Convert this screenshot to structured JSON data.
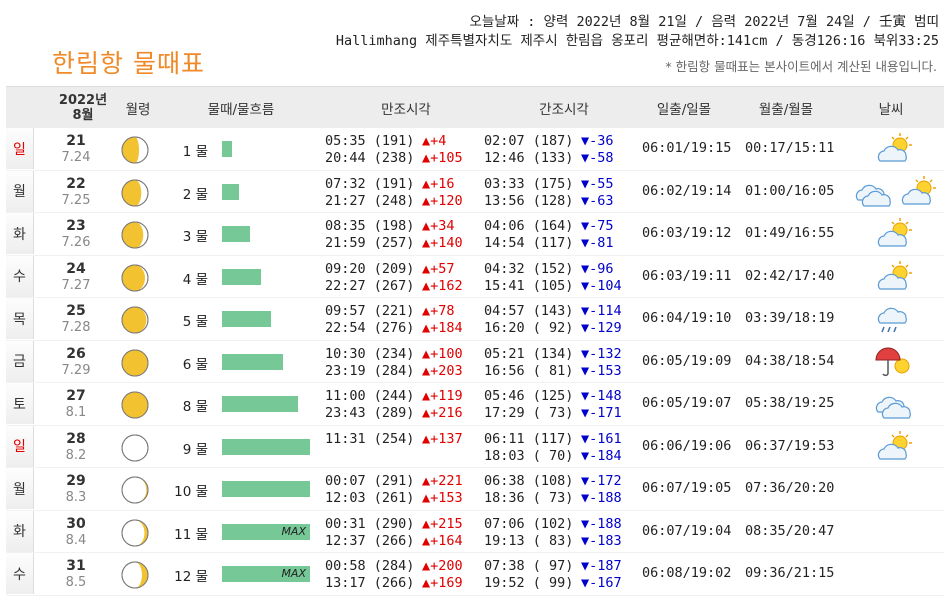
{
  "header": {
    "today_line": "오늘날짜 : 양력 2022년 8월 21일 / 음력 2022년 7월 24일 / 壬寅 범띠",
    "location_line": "Hallimhang 제주특별자치도 제주시 한림읍 옹포리 평균해면하:141cm / 동경126:16 북위33:25",
    "title": "한림항 물때표",
    "note": "* 한림항 물때표는 본사이트에서 계산된 내용입니다."
  },
  "table": {
    "year_label": "2022년",
    "month_label": "8월",
    "columns": [
      "월령",
      "물때/물흐름",
      "만조시각",
      "간조시각",
      "일출/일몰",
      "월출/월몰",
      "날씨"
    ],
    "max_label": "MAX",
    "rows": [
      {
        "weekday": "일",
        "weekend": true,
        "day": "21",
        "lunar": "7.24",
        "moon_phase": 0.8,
        "mul": "1 물",
        "flow": 0.08,
        "hi1": "05:35 (191)",
        "hi1d": "▲+4",
        "hi2": "20:44 (238)",
        "hi2d": "▲+105",
        "lo1": "02:07 (187)",
        "lo1d": "▼-36",
        "lo2": "12:46 (133)",
        "lo2d": "▼-58",
        "sun": "06:01/19:15",
        "moon": "00:17/15:11",
        "weather": [
          "partly-cloudy-icon"
        ]
      },
      {
        "weekday": "월",
        "weekend": false,
        "day": "22",
        "lunar": "7.25",
        "moon_phase": 0.83,
        "mul": "2 물",
        "flow": 0.14,
        "hi1": "07:32 (191)",
        "hi1d": "▲+16",
        "hi2": "21:27 (248)",
        "hi2d": "▲+120",
        "lo1": "03:33 (175)",
        "lo1d": "▼-55",
        "lo2": "13:56 (128)",
        "lo2d": "▼-63",
        "sun": "06:02/19:14",
        "moon": "01:00/16:05",
        "weather": [
          "cloudy-icon",
          "partly-cloudy-icon"
        ]
      },
      {
        "weekday": "화",
        "weekend": false,
        "day": "23",
        "lunar": "7.26",
        "moon_phase": 0.86,
        "mul": "3 물",
        "flow": 0.23,
        "hi1": "08:35 (198)",
        "hi1d": "▲+34",
        "hi2": "21:59 (257)",
        "hi2d": "▲+140",
        "lo1": "04:06 (164)",
        "lo1d": "▼-75",
        "lo2": "14:54 (117)",
        "lo2d": "▼-81",
        "sun": "06:03/19:12",
        "moon": "01:49/16:55",
        "weather": [
          "partly-cloudy-icon"
        ]
      },
      {
        "weekday": "수",
        "weekend": false,
        "day": "24",
        "lunar": "7.27",
        "moon_phase": 0.89,
        "mul": "4 물",
        "flow": 0.32,
        "hi1": "09:20 (209)",
        "hi1d": "▲+57",
        "hi2": "22:27 (267)",
        "hi2d": "▲+162",
        "lo1": "04:32 (152)",
        "lo1d": "▼-96",
        "lo2": "15:41 (105)",
        "lo2d": "▼-104",
        "sun": "06:03/19:11",
        "moon": "02:42/17:40",
        "weather": [
          "partly-cloudy-icon"
        ]
      },
      {
        "weekday": "목",
        "weekend": false,
        "day": "25",
        "lunar": "7.28",
        "moon_phase": 0.92,
        "mul": "5 물",
        "flow": 0.4,
        "hi1": "09:57 (221)",
        "hi1d": "▲+78",
        "hi2": "22:54 (276)",
        "hi2d": "▲+184",
        "lo1": "04:57 (143)",
        "lo1d": "▼-114",
        "lo2": "16:20 ( 92)",
        "lo2d": "▼-129",
        "sun": "06:04/19:10",
        "moon": "03:39/18:19",
        "weather": [
          "rain-cloud-icon"
        ]
      },
      {
        "weekday": "금",
        "weekend": false,
        "day": "26",
        "lunar": "7.29",
        "moon_phase": 0.96,
        "mul": "6 물",
        "flow": 0.5,
        "hi1": "10:30 (234)",
        "hi1d": "▲+100",
        "hi2": "23:19 (284)",
        "hi2d": "▲+203",
        "lo1": "05:21 (134)",
        "lo1d": "▼-132",
        "lo2": "16:56 ( 81)",
        "lo2d": "▼-153",
        "sun": "06:05/19:09",
        "moon": "04:38/18:54",
        "weather": [
          "umbrella-sun-icon"
        ]
      },
      {
        "weekday": "토",
        "weekend": false,
        "day": "27",
        "lunar": "8.1",
        "moon_phase": 1.0,
        "mul": "8 물",
        "flow": 0.62,
        "hi1": "11:00 (244)",
        "hi1d": "▲+119",
        "hi2": "23:43 (289)",
        "hi2d": "▲+216",
        "lo1": "05:46 (125)",
        "lo1d": "▼-148",
        "lo2": "17:29 ( 73)",
        "lo2d": "▼-171",
        "sun": "06:05/19:07",
        "moon": "05:38/19:25",
        "weather": [
          "cloudy-icon"
        ]
      },
      {
        "weekday": "일",
        "weekend": true,
        "day": "28",
        "lunar": "8.2",
        "moon_phase": 0.04,
        "mul": "9 물",
        "flow": 0.72,
        "hi1": "11:31 (254)",
        "hi1d": "▲+137",
        "hi2": "",
        "hi2d": "",
        "lo1": "06:11 (117)",
        "lo1d": "▼-161",
        "lo2": "18:03 ( 70)",
        "lo2d": "▼-184",
        "sun": "06:06/19:06",
        "moon": "06:37/19:53",
        "weather": [
          "partly-cloudy-icon"
        ]
      },
      {
        "weekday": "월",
        "weekend": false,
        "day": "29",
        "lunar": "8.3",
        "moon_phase": 0.08,
        "mul": "10 물",
        "flow": 0.72,
        "hi1": "00:07 (291)",
        "hi1d": "▲+221",
        "hi2": "12:03 (261)",
        "hi2d": "▲+153",
        "lo1": "06:38 (108)",
        "lo1d": "▼-172",
        "lo2": "18:36 ( 73)",
        "lo2d": "▼-188",
        "sun": "06:07/19:05",
        "moon": "07:36/20:20",
        "weather": []
      },
      {
        "weekday": "화",
        "weekend": false,
        "day": "30",
        "lunar": "8.4",
        "moon_phase": 0.12,
        "mul": "11 물",
        "flow": 0.72,
        "max": true,
        "hi1": "00:31 (290)",
        "hi1d": "▲+215",
        "hi2": "12:37 (266)",
        "hi2d": "▲+164",
        "lo1": "07:06 (102)",
        "lo1d": "▼-188",
        "lo2": "19:13 ( 83)",
        "lo2d": "▼-183",
        "sun": "06:07/19:04",
        "moon": "08:35/20:47",
        "weather": []
      },
      {
        "weekday": "수",
        "weekend": false,
        "day": "31",
        "lunar": "8.5",
        "moon_phase": 0.16,
        "mul": "12 물",
        "flow": 0.72,
        "max": true,
        "hi1": "00:58 (284)",
        "hi1d": "▲+200",
        "hi2": "13:17 (266)",
        "hi2d": "▲+169",
        "lo1": "07:38 ( 97)",
        "lo1d": "▼-187",
        "lo2": "19:52 ( 99)",
        "lo2d": "▼-167",
        "sun": "06:08/19:02",
        "moon": "09:36/21:15",
        "weather": []
      }
    ]
  },
  "colors": {
    "title": "#F08A28",
    "flow_bar": "#76C897",
    "rise": "#E00000",
    "fall": "#0000CC",
    "weekend": "#E00000",
    "moon_lit": "#F2C230"
  }
}
